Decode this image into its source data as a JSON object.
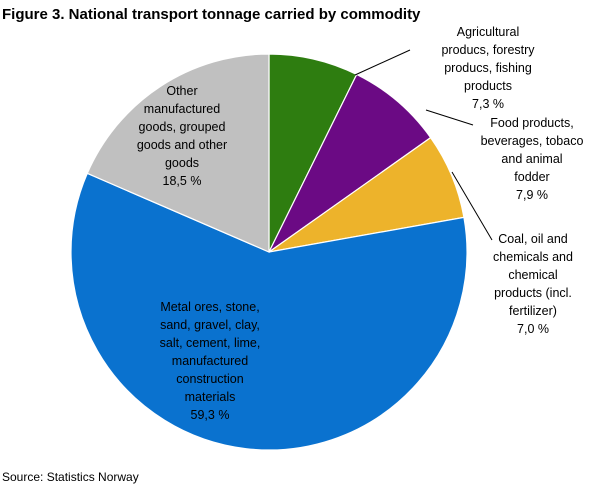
{
  "title": "Figure 3. National transport tonnage carried by commodity",
  "source": "Source: Statistics Norway",
  "chart_data": {
    "type": "pie",
    "title": "Figure 3. National transport tonnage carried by commodity",
    "unit": "%",
    "start_angle": "12 o'clock, clockwise",
    "slices": [
      {
        "label_lines": [
          "Agricultural",
          "producs, forestry",
          "producs, fishing",
          "products"
        ],
        "value": 7.3,
        "value_label": "7,3  %",
        "color": "#2e7d10",
        "label_placement": "outside"
      },
      {
        "label_lines": [
          "Food products,",
          "beverages,  tobaco",
          "and animal",
          "fodder"
        ],
        "value": 7.9,
        "value_label": "7,9  %",
        "color": "#6b0a84",
        "label_placement": "outside"
      },
      {
        "label_lines": [
          "Coal,  oil and",
          "chemicals  and",
          "chemical",
          "products (incl.",
          "fertilizer)"
        ],
        "value": 7.0,
        "value_label": "7,0  %",
        "color": "#edb32b",
        "label_placement": "outside"
      },
      {
        "label_lines": [
          "Metal ores,  stone,",
          "sand, gravel, clay,",
          "salt,  cement,  lime,",
          "manufactured",
          "construction",
          "materials"
        ],
        "value": 59.3,
        "value_label": "59,3  %",
        "color": "#0a72cf",
        "label_placement": "inside"
      },
      {
        "label_lines": [
          "Other",
          "manufactured",
          "goods, grouped",
          "goods and other",
          "goods"
        ],
        "value": 18.5,
        "value_label": "18,5  %",
        "color": "#c0c0c0",
        "label_placement": "inside"
      }
    ]
  }
}
